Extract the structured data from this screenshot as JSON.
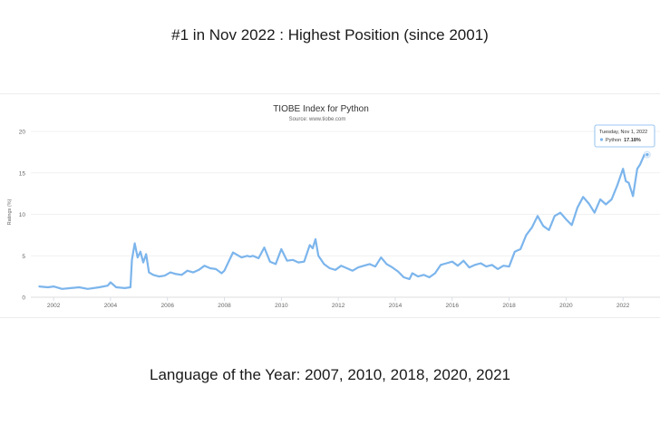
{
  "headline_top": "#1 in Nov 2022 : Highest Position (since 2001)",
  "headline_bottom": "Language of the Year: 2007, 2010, 2018, 2020, 2021",
  "chart_data": {
    "type": "line",
    "title": "TIOBE Index for Python",
    "subtitle": "Source: www.tiobe.com",
    "ylabel": "Ratings (%)",
    "xlabel": "",
    "xlim": [
      2001.2,
      2023.3
    ],
    "ylim": [
      0,
      20
    ],
    "x_ticks": [
      2002,
      2004,
      2006,
      2008,
      2010,
      2012,
      2014,
      2016,
      2018,
      2020,
      2022
    ],
    "y_ticks": [
      0,
      5,
      10,
      15,
      20
    ],
    "grid": true,
    "line_color": "#7cb5ec",
    "series": [
      {
        "name": "Python",
        "x": [
          2001.5,
          2001.8,
          2002.0,
          2002.3,
          2002.6,
          2002.9,
          2003.2,
          2003.6,
          2003.9,
          2004.0,
          2004.2,
          2004.5,
          2004.7,
          2004.75,
          2004.85,
          2004.95,
          2005.05,
          2005.15,
          2005.25,
          2005.35,
          2005.5,
          2005.7,
          2005.9,
          2006.1,
          2006.3,
          2006.5,
          2006.7,
          2006.9,
          2007.1,
          2007.3,
          2007.5,
          2007.7,
          2007.9,
          2008.0,
          2008.3,
          2008.6,
          2008.8,
          2008.9,
          2009.0,
          2009.2,
          2009.4,
          2009.6,
          2009.8,
          2010.0,
          2010.2,
          2010.4,
          2010.6,
          2010.8,
          2011.0,
          2011.1,
          2011.2,
          2011.3,
          2011.5,
          2011.7,
          2011.9,
          2012.1,
          2012.3,
          2012.5,
          2012.7,
          2012.9,
          2013.1,
          2013.3,
          2013.5,
          2013.7,
          2013.9,
          2014.1,
          2014.3,
          2014.5,
          2014.6,
          2014.8,
          2015.0,
          2015.2,
          2015.4,
          2015.6,
          2015.8,
          2016.0,
          2016.2,
          2016.4,
          2016.6,
          2016.8,
          2017.0,
          2017.2,
          2017.4,
          2017.6,
          2017.8,
          2018.0,
          2018.2,
          2018.4,
          2018.6,
          2018.8,
          2019.0,
          2019.2,
          2019.4,
          2019.6,
          2019.8,
          2020.0,
          2020.2,
          2020.4,
          2020.6,
          2020.8,
          2021.0,
          2021.2,
          2021.4,
          2021.6,
          2021.8,
          2022.0,
          2022.1,
          2022.2,
          2022.35,
          2022.5,
          2022.6,
          2022.75,
          2022.85
        ],
        "values": [
          1.3,
          1.2,
          1.3,
          1.0,
          1.1,
          1.2,
          1.0,
          1.2,
          1.4,
          1.8,
          1.2,
          1.1,
          1.2,
          4.5,
          6.5,
          4.8,
          5.5,
          4.2,
          5.2,
          3.0,
          2.7,
          2.5,
          2.6,
          3.0,
          2.8,
          2.7,
          3.2,
          3.0,
          3.3,
          3.8,
          3.5,
          3.4,
          2.9,
          3.2,
          5.4,
          4.8,
          5.0,
          4.9,
          5.0,
          4.7,
          6.0,
          4.3,
          4.0,
          5.8,
          4.4,
          4.5,
          4.2,
          4.3,
          6.3,
          5.9,
          7.0,
          5.0,
          4.0,
          3.5,
          3.3,
          3.8,
          3.5,
          3.2,
          3.6,
          3.8,
          4.0,
          3.7,
          4.8,
          4.0,
          3.6,
          3.1,
          2.4,
          2.2,
          2.9,
          2.5,
          2.7,
          2.4,
          2.9,
          3.9,
          4.1,
          4.3,
          3.8,
          4.4,
          3.6,
          3.9,
          4.1,
          3.7,
          3.9,
          3.4,
          3.8,
          3.7,
          5.5,
          5.8,
          7.5,
          8.4,
          9.8,
          8.6,
          8.1,
          9.8,
          10.2,
          9.4,
          8.7,
          10.8,
          12.1,
          11.3,
          10.2,
          11.8,
          11.2,
          11.8,
          13.5,
          15.5,
          14.0,
          13.8,
          12.2,
          15.5,
          16.0,
          17.18,
          17.2
        ]
      }
    ],
    "tooltip": {
      "date": "Tuesday, Nov 1, 2022",
      "series": "Python",
      "value": "17.18%"
    }
  }
}
